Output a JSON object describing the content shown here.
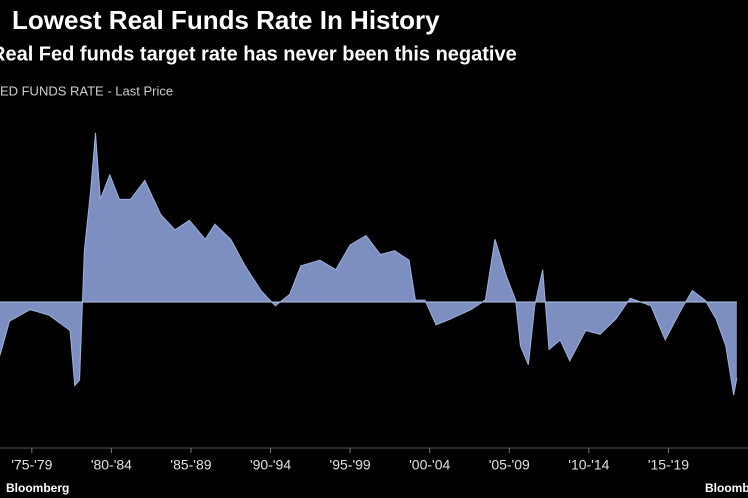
{
  "chart_data": {
    "type": "area",
    "title": "Lowest Real Funds Rate In History",
    "subtitle": "Real Fed funds target rate has never been this negative",
    "legend_label": "FED FUNDS RATE - Last Price",
    "source": "Bloomberg",
    "source_right": "Bloomberg",
    "color": "#7d8fc0",
    "xlim": [
      1975.5,
      2022.5
    ],
    "ylim": [
      -7,
      10
    ],
    "xticks": [
      {
        "value": 1977.5,
        "label": "'75-'79"
      },
      {
        "value": 1982.5,
        "label": "'80-'84"
      },
      {
        "value": 1987.5,
        "label": "'85-'89"
      },
      {
        "value": 1992.5,
        "label": "'90-'94"
      },
      {
        "value": 1997.5,
        "label": "'95-'99"
      },
      {
        "value": 2002.5,
        "label": "'00-'04"
      },
      {
        "value": 2007.5,
        "label": "'05-'09"
      },
      {
        "value": 2012.5,
        "label": "'10-'14"
      },
      {
        "value": 2017.5,
        "label": "'15-'19"
      }
    ],
    "x": [
      1975.5,
      1976.1,
      1977.4,
      1978.6,
      1979.9,
      1980.2,
      1980.5,
      1980.8,
      1981.2,
      1981.5,
      1981.8,
      1982.4,
      1983.0,
      1983.7,
      1984.6,
      1985.6,
      1986.5,
      1987.4,
      1988.4,
      1989.0,
      1990.0,
      1990.9,
      1991.9,
      1992.8,
      1993.7,
      1994.4,
      1995.6,
      1996.6,
      1997.5,
      1998.5,
      1999.4,
      2000.3,
      2001.2,
      2001.6,
      2002.2,
      2002.9,
      2003.8,
      2005.1,
      2006.0,
      2006.6,
      2007.3,
      2007.9,
      2008.2,
      2008.7,
      2009.1,
      2009.6,
      2010.0,
      2010.7,
      2011.3,
      2012.3,
      2013.2,
      2014.2,
      2015.1,
      2016.4,
      2017.3,
      2018.3,
      2019.0,
      2019.8,
      2020.5,
      2021.1,
      2021.6,
      2021.8
    ],
    "values": [
      -2.8,
      -1.0,
      -0.4,
      -0.7,
      -1.5,
      -4.4,
      -4.1,
      2.7,
      5.9,
      8.9,
      5.4,
      6.7,
      5.4,
      5.4,
      6.4,
      4.6,
      3.8,
      4.3,
      3.3,
      4.1,
      3.3,
      1.9,
      0.6,
      -0.2,
      0.4,
      1.9,
      2.2,
      1.7,
      3.0,
      3.5,
      2.5,
      2.7,
      2.2,
      0.1,
      0.1,
      -1.2,
      -0.9,
      -0.4,
      0.1,
      3.3,
      1.4,
      0.1,
      -2.3,
      -3.3,
      -0.2,
      1.7,
      -2.5,
      -2.0,
      -3.1,
      -1.5,
      -1.7,
      -0.9,
      0.2,
      -0.2,
      -2.0,
      -0.4,
      0.6,
      0.1,
      -0.9,
      -2.3,
      -4.9,
      -4.0
    ]
  }
}
